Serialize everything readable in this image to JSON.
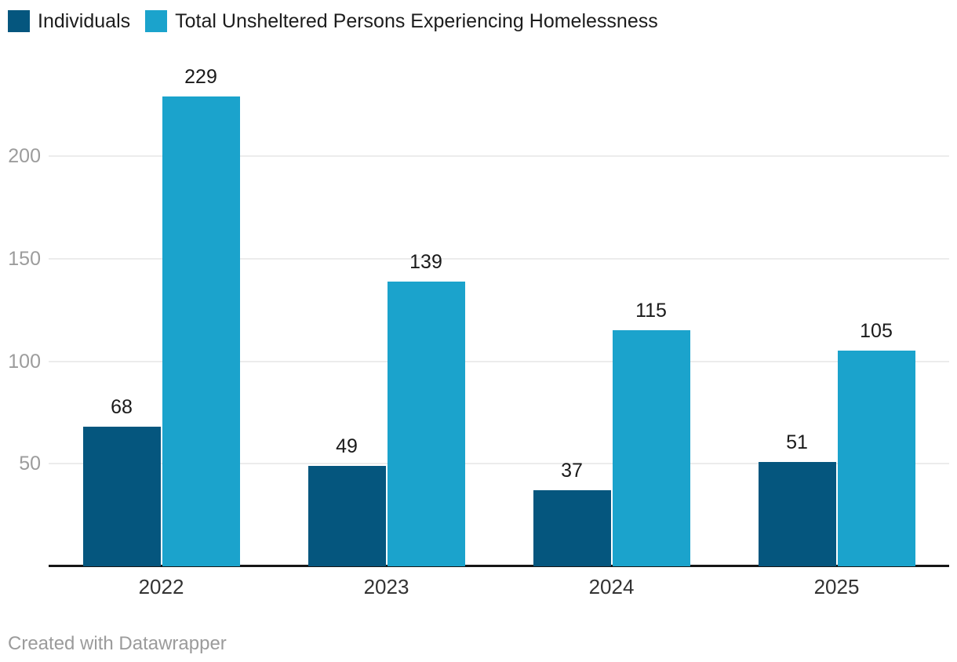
{
  "legend": {
    "items": [
      {
        "label": "Individuals",
        "color": "#05567e"
      },
      {
        "label": "Total Unsheltered Persons Experiencing Homelessness",
        "color": "#1ba3cc"
      }
    ]
  },
  "chart_data": {
    "type": "bar",
    "categories": [
      "2022",
      "2023",
      "2024",
      "2025"
    ],
    "series": [
      {
        "name": "Individuals",
        "color": "#05567e",
        "values": [
          68,
          49,
          37,
          51
        ]
      },
      {
        "name": "Total Unsheltered Persons Experiencing Homelessness",
        "color": "#1ba3cc",
        "values": [
          229,
          139,
          115,
          105
        ]
      }
    ],
    "yticks": [
      50,
      100,
      150,
      200
    ],
    "ylim": [
      0,
      250
    ],
    "grid": true,
    "legend_position": "top",
    "value_labels": true,
    "title": "",
    "xlabel": "",
    "ylabel": ""
  },
  "colors": {
    "series_dark": "#05567e",
    "series_light": "#1ba3cc",
    "gridline": "#ececec",
    "axis_line": "#161616",
    "tick_label": "#9c9c9c",
    "value_label": "#1a1a1a",
    "category_label": "#333333",
    "footer_text": "#9b9b9b",
    "background": "#ffffff"
  },
  "footer": {
    "credit": "Created with Datawrapper"
  }
}
